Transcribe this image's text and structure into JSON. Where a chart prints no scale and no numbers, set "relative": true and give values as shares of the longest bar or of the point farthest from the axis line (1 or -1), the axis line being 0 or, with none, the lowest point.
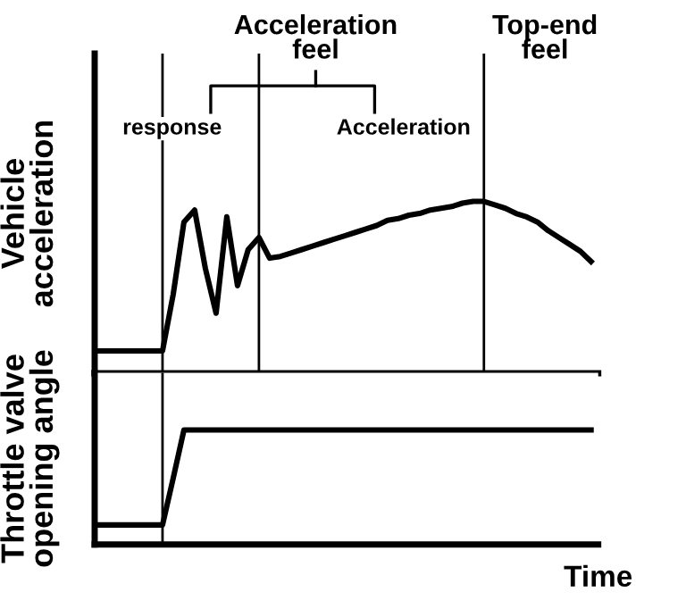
{
  "chart_data": [
    {
      "type": "line",
      "relative": true,
      "ylabel": "Vehicle\nacceleration",
      "categories": [
        null,
        null,
        null,
        null,
        null,
        null,
        null,
        null,
        null,
        null,
        null,
        null,
        null,
        null,
        null,
        null,
        null,
        null,
        null,
        null,
        null,
        null,
        null,
        null,
        null,
        null,
        null,
        null,
        null,
        null,
        null,
        null,
        null,
        null,
        null,
        null,
        null,
        null,
        null,
        null,
        null,
        null,
        null,
        null,
        null,
        null,
        null
      ],
      "series": [
        {
          "color": "#000000",
          "values": [
            0.13,
            0.13,
            0.13,
            0.13,
            0.13,
            0.13,
            0.13,
            0.46,
            0.88,
            0.95,
            0.61,
            0.35,
            0.91,
            0.51,
            0.72,
            0.79,
            0.67,
            0.68,
            0.7,
            0.72,
            0.74,
            0.76,
            0.78,
            0.8,
            0.82,
            0.84,
            0.86,
            0.89,
            0.9,
            0.92,
            0.93,
            0.95,
            0.96,
            0.97,
            0.99,
            1,
            1,
            0.98,
            0.96,
            0.93,
            0.91,
            0.88,
            0.83,
            0.79,
            0.75,
            0.71,
            0.65
          ]
        }
      ],
      "annotations": [
        "Acceleration\nfeel",
        "Top-end\nfeel",
        "response",
        "Acceleration"
      ],
      "marker": "none",
      "line_style": "solid",
      "grid": "x"
    },
    {
      "type": "line",
      "relative": true,
      "ylabel": "Throttle valve\nopening angle",
      "xlabel": "Time",
      "categories": [
        null,
        null,
        null,
        null,
        null,
        null,
        null,
        null,
        null,
        null,
        null,
        null,
        null,
        null,
        null,
        null,
        null,
        null,
        null,
        null,
        null,
        null,
        null,
        null,
        null,
        null,
        null,
        null,
        null,
        null,
        null,
        null,
        null,
        null,
        null,
        null,
        null,
        null,
        null,
        null,
        null,
        null,
        null,
        null,
        null,
        null,
        null
      ],
      "series": [
        {
          "color": "#000000",
          "values": [
            0.17,
            0.17,
            0.17,
            0.17,
            0.17,
            0.17,
            0.17,
            0.58,
            1,
            1,
            1,
            1,
            1,
            1,
            1,
            1,
            1,
            1,
            1,
            1,
            1,
            1,
            1,
            1,
            1,
            1,
            1,
            1,
            1,
            1,
            1,
            1,
            1,
            1,
            1,
            1,
            1,
            1,
            1,
            1,
            1,
            1,
            1,
            1,
            1,
            1,
            1
          ]
        }
      ],
      "marker": "none",
      "line_style": "solid",
      "grid": "x"
    }
  ]
}
